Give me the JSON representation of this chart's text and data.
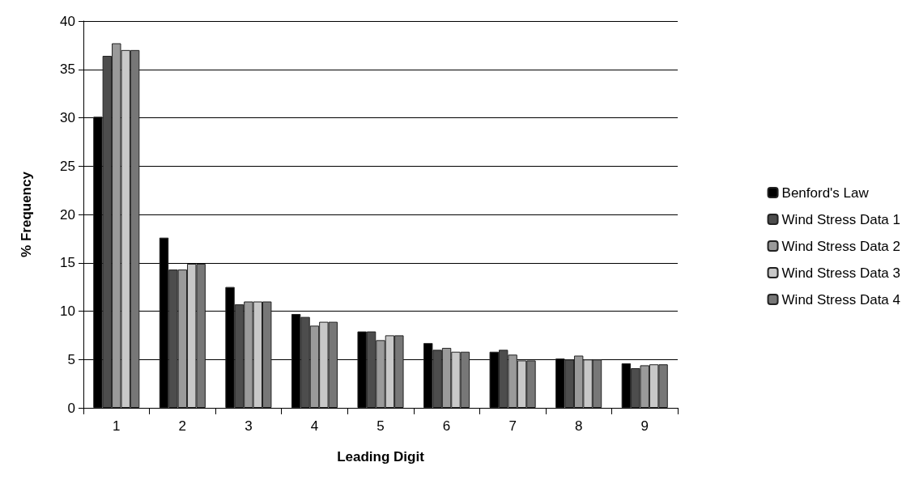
{
  "chart_data": {
    "type": "bar",
    "xlabel": "Leading Digit",
    "ylabel": "% Frequency",
    "categories": [
      "1",
      "2",
      "3",
      "4",
      "5",
      "6",
      "7",
      "8",
      "9"
    ],
    "series": [
      {
        "name": "Benford's Law",
        "color": "#000000",
        "values": [
          30.1,
          17.6,
          12.5,
          9.7,
          7.9,
          6.7,
          5.8,
          5.1,
          4.6
        ]
      },
      {
        "name": "Wind Stress Data 1",
        "color": "#4d4d4d",
        "values": [
          36.4,
          14.3,
          10.7,
          9.4,
          7.9,
          6.0,
          6.0,
          5.0,
          4.1
        ]
      },
      {
        "name": "Wind Stress Data 2",
        "color": "#9a9a9a",
        "values": [
          37.7,
          14.3,
          11.0,
          8.5,
          7.0,
          6.2,
          5.5,
          5.4,
          4.4
        ]
      },
      {
        "name": "Wind Stress Data 3",
        "color": "#c8c8c8",
        "values": [
          37.0,
          14.9,
          11.0,
          8.9,
          7.5,
          5.8,
          4.9,
          5.0,
          4.5
        ]
      },
      {
        "name": "Wind Stress Data 4",
        "color": "#777777",
        "values": [
          37.0,
          14.9,
          11.0,
          8.9,
          7.5,
          5.8,
          4.9,
          5.0,
          4.5
        ]
      }
    ],
    "ylim": [
      0,
      40
    ],
    "yticks": [
      0,
      5,
      10,
      15,
      20,
      25,
      30,
      35,
      40
    ],
    "grid": "y",
    "legend": "right"
  }
}
